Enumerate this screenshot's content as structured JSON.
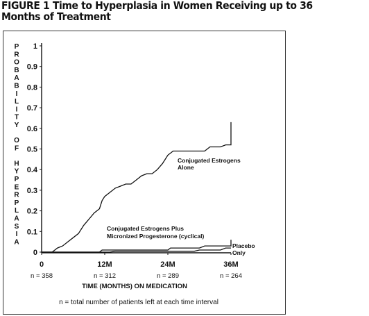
{
  "figure": {
    "title": "FIGURE 1 Time to Hyperplasia in Women Receiving up to 36 Months of Treatment",
    "footnote": "n = total number of patients left at each time interval"
  },
  "chart_data": {
    "type": "line",
    "ylabel": "PROBABILITY OF HYPERPLASIA",
    "xlabel": "TIME (MONTHS) ON MEDICATION",
    "ylim": [
      0,
      1
    ],
    "xlim": [
      0,
      36
    ],
    "yticks": [
      "1",
      "0.9",
      "0.8",
      "0.7",
      "0.6",
      "0.5",
      "0.4",
      "0.3",
      "0.2",
      "0.1",
      "0"
    ],
    "xticks": [
      {
        "value": 0,
        "label": "0",
        "n": "n = 358"
      },
      {
        "value": 12,
        "label": "12M",
        "n": "n = 312"
      },
      {
        "value": 24,
        "label": "24M",
        "n": "n = 289"
      },
      {
        "value": 36,
        "label": "36M",
        "n": "n = 264"
      }
    ],
    "series": [
      {
        "label_lines": [
          "Conjugated Estrogens",
          "Alone"
        ],
        "points": [
          [
            0,
            0
          ],
          [
            2,
            0
          ],
          [
            3,
            0.02
          ],
          [
            4,
            0.03
          ],
          [
            5,
            0.05
          ],
          [
            6,
            0.07
          ],
          [
            7,
            0.09
          ],
          [
            8,
            0.13
          ],
          [
            9,
            0.16
          ],
          [
            10,
            0.19
          ],
          [
            11,
            0.21
          ],
          [
            11.5,
            0.25
          ],
          [
            12,
            0.27
          ],
          [
            13,
            0.29
          ],
          [
            14,
            0.31
          ],
          [
            15,
            0.32
          ],
          [
            16,
            0.33
          ],
          [
            17,
            0.33
          ],
          [
            18,
            0.35
          ],
          [
            19,
            0.37
          ],
          [
            20,
            0.38
          ],
          [
            21,
            0.38
          ],
          [
            22,
            0.4
          ],
          [
            23,
            0.43
          ],
          [
            24,
            0.47
          ],
          [
            25,
            0.49
          ],
          [
            26,
            0.49
          ],
          [
            31,
            0.49
          ],
          [
            32,
            0.51
          ],
          [
            34,
            0.51
          ],
          [
            35,
            0.52
          ],
          [
            36,
            0.52
          ],
          [
            36,
            0.63
          ]
        ]
      },
      {
        "label_lines": [
          "Conjugated Estrogens Plus",
          "Micronized Progesterone (cyclical)"
        ],
        "points": [
          [
            0,
            0
          ],
          [
            11,
            0
          ],
          [
            11.5,
            0.01
          ],
          [
            24,
            0.01
          ],
          [
            24.5,
            0.02
          ],
          [
            30,
            0.02
          ],
          [
            31,
            0.03
          ],
          [
            36,
            0.03
          ],
          [
            36,
            0.06
          ]
        ]
      },
      {
        "label_lines": [
          "Placebo",
          "Only"
        ],
        "points": [
          [
            0,
            0
          ],
          [
            13,
            0
          ],
          [
            14,
            0.004
          ],
          [
            29,
            0.004
          ],
          [
            30,
            0.01
          ],
          [
            34,
            0.01
          ],
          [
            35,
            0.02
          ],
          [
            36,
            0.02
          ]
        ]
      }
    ]
  }
}
